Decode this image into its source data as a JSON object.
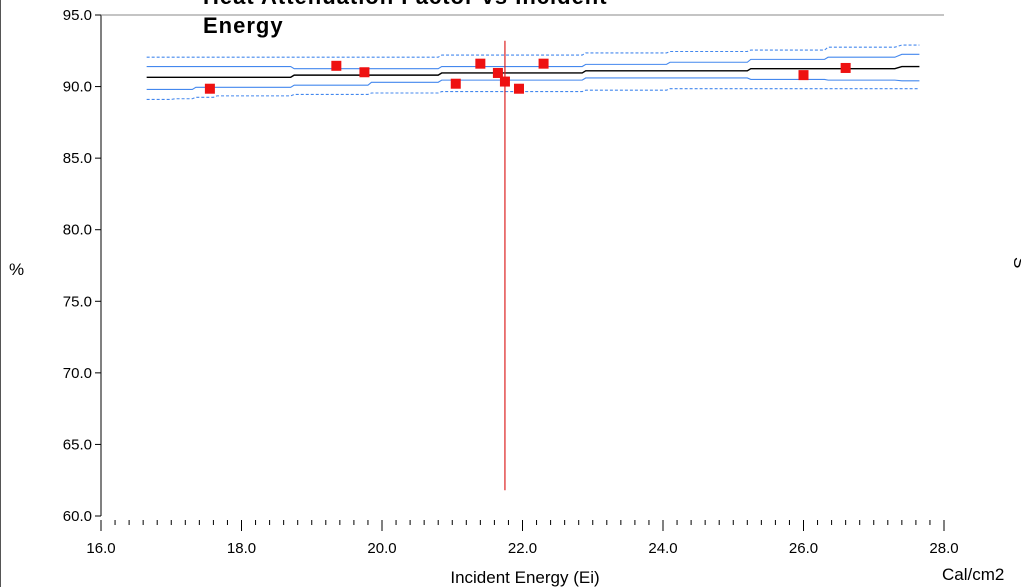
{
  "chart_data": {
    "type": "scatter",
    "title_lines": [
      "Heat Attenuation Factor vs Incident",
      "Energy"
    ],
    "xlabel": "Incident Energy (Ei)",
    "x_unit": "Cal/cm2",
    "ylabel": "%",
    "right_edge_text": "S",
    "xlim": [
      16.0,
      28.0
    ],
    "ylim": [
      60.0,
      95.0
    ],
    "x_ticks": [
      "16.0",
      "18.0",
      "20.0",
      "22.0",
      "24.0",
      "26.0",
      "28.0"
    ],
    "y_ticks": [
      "60.0",
      "65.0",
      "70.0",
      "75.0",
      "80.0",
      "85.0",
      "90.0",
      "95.0"
    ],
    "grid": false,
    "reference_line": {
      "x": 21.75,
      "y_range": [
        61.8,
        93.2
      ],
      "color": "#dd2222"
    },
    "points": {
      "color": "#ee1111",
      "x": [
        17.55,
        19.35,
        19.75,
        21.05,
        21.4,
        21.65,
        21.75,
        21.95,
        22.3,
        26.0,
        26.6
      ],
      "y": [
        89.85,
        91.45,
        91.0,
        90.2,
        91.6,
        90.95,
        90.35,
        89.85,
        91.6,
        90.8,
        91.3
      ]
    },
    "series": [
      {
        "role": "fit",
        "color": "#000000",
        "dashed": false,
        "x": [
          16.65,
          18.7,
          18.75,
          20.8,
          20.85,
          22.85,
          22.9,
          25.2,
          25.25,
          27.3,
          27.4,
          27.65
        ],
        "y": [
          90.65,
          90.65,
          90.8,
          90.8,
          90.95,
          90.95,
          91.1,
          91.1,
          91.25,
          91.25,
          91.4,
          91.4
        ]
      },
      {
        "role": "confidence-upper",
        "color": "#4488ee",
        "dashed": false,
        "x": [
          16.65,
          18.7,
          18.75,
          20.8,
          20.85,
          22.85,
          22.9,
          24.05,
          24.1,
          25.2,
          25.25,
          26.3,
          26.35,
          27.3,
          27.4,
          27.65
        ],
        "y": [
          91.4,
          91.4,
          91.25,
          91.25,
          91.4,
          91.4,
          91.55,
          91.55,
          91.7,
          91.7,
          91.9,
          91.9,
          92.05,
          92.05,
          92.25,
          92.25
        ]
      },
      {
        "role": "confidence-lower",
        "color": "#4488ee",
        "dashed": false,
        "x": [
          16.65,
          17.3,
          17.35,
          18.7,
          18.75,
          19.8,
          19.85,
          20.8,
          20.85,
          22.85,
          22.9,
          25.2,
          25.25,
          26.3,
          26.35,
          27.3,
          27.4,
          27.65
        ],
        "y": [
          89.8,
          89.8,
          89.95,
          89.95,
          90.1,
          90.1,
          90.3,
          90.3,
          90.45,
          90.45,
          90.6,
          90.6,
          90.5,
          90.5,
          90.45,
          90.45,
          90.4,
          90.4
        ]
      },
      {
        "role": "prediction-upper",
        "color": "#4488ee",
        "dashed": true,
        "x": [
          16.65,
          18.7,
          18.75,
          20.8,
          20.85,
          22.85,
          22.9,
          24.05,
          24.1,
          25.2,
          25.25,
          26.3,
          26.35,
          27.3,
          27.4,
          27.65
        ],
        "y": [
          92.05,
          92.05,
          92.05,
          92.05,
          92.2,
          92.2,
          92.35,
          92.35,
          92.45,
          92.45,
          92.55,
          92.55,
          92.75,
          92.75,
          92.9,
          92.9
        ]
      },
      {
        "role": "prediction-lower",
        "color": "#4488ee",
        "dashed": true,
        "x": [
          16.65,
          17.0,
          17.05,
          17.3,
          17.35,
          17.6,
          17.65,
          18.7,
          18.75,
          19.8,
          19.85,
          20.8,
          20.85,
          22.85,
          22.9,
          24.05,
          24.1,
          26.3,
          26.35,
          27.65
        ],
        "y": [
          89.1,
          89.1,
          89.15,
          89.15,
          89.25,
          89.25,
          89.35,
          89.35,
          89.45,
          89.45,
          89.55,
          89.55,
          89.65,
          89.65,
          89.75,
          89.75,
          89.85,
          89.85,
          89.85,
          89.85
        ]
      }
    ]
  }
}
